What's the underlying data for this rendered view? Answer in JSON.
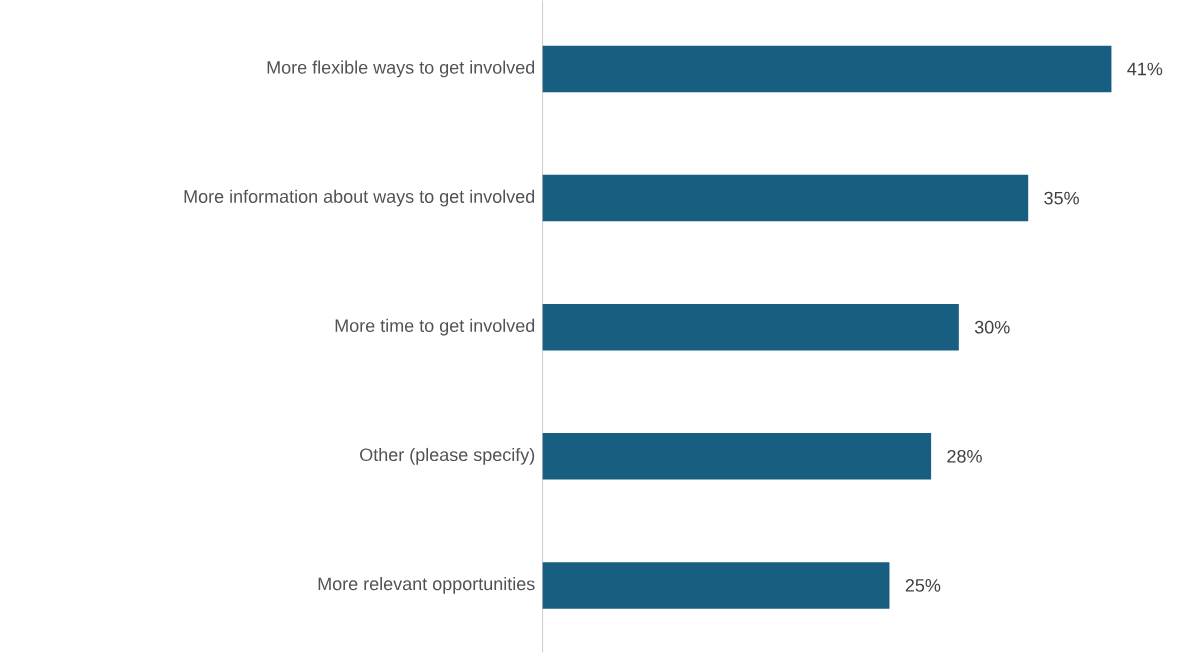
{
  "chart_data": {
    "type": "bar",
    "orientation": "horizontal",
    "categories": [
      "More flexible ways to get involved",
      "More information about ways to get involved",
      "More time to get involved",
      "Other (please specify)",
      "More relevant opportunities"
    ],
    "values": [
      41,
      35,
      30,
      28,
      25
    ],
    "value_labels": [
      "41%",
      "35%",
      "30%",
      "28%",
      "25%"
    ],
    "color": "#175e80"
  }
}
